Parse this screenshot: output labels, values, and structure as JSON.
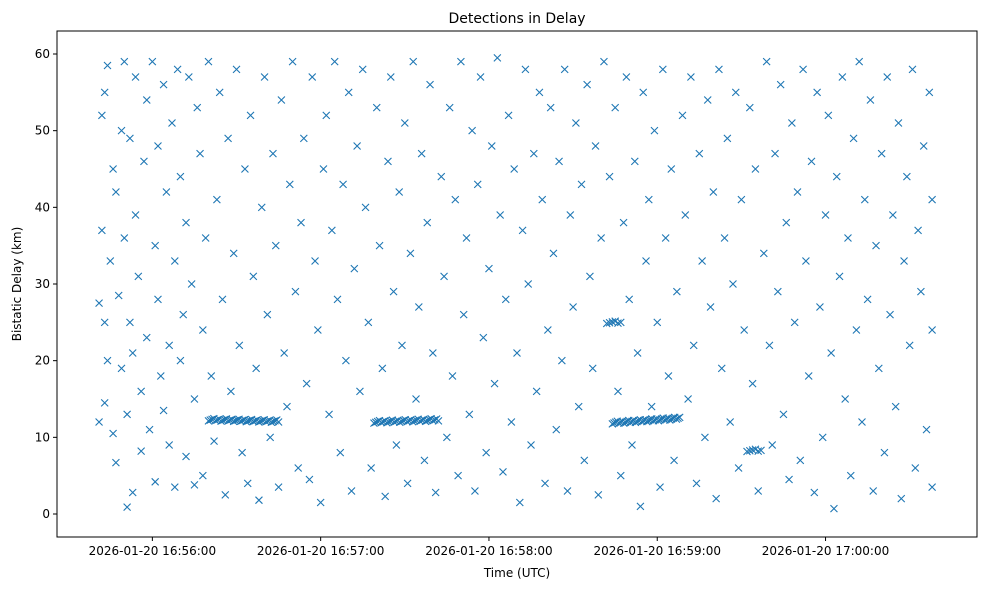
{
  "chart_data": {
    "type": "scatter",
    "title": "Detections in Delay",
    "xlabel": "Time (UTC)",
    "ylabel": "Bistatic Delay (km)",
    "x_units": "seconds after 2026-01-20 16:56:00 UTC",
    "xlim": [
      -34,
      294
    ],
    "ylim": [
      -3,
      63
    ],
    "grid": false,
    "legend": "none",
    "marker": "x",
    "color": "#1f77b4",
    "xticks": [
      {
        "value": 0,
        "label": "2026-01-20 16:56:00"
      },
      {
        "value": 60,
        "label": "2026-01-20 16:57:00"
      },
      {
        "value": 120,
        "label": "2026-01-20 16:58:00"
      },
      {
        "value": 180,
        "label": "2026-01-20 16:59:00"
      },
      {
        "value": 240,
        "label": "2026-01-20 17:00:00"
      }
    ],
    "yticks": [
      {
        "value": 0,
        "label": "0"
      },
      {
        "value": 10,
        "label": "10"
      },
      {
        "value": 20,
        "label": "20"
      },
      {
        "value": 30,
        "label": "30"
      },
      {
        "value": 40,
        "label": "40"
      },
      {
        "value": 50,
        "label": "50"
      },
      {
        "value": 60,
        "label": "60"
      }
    ],
    "tracks": [
      {
        "t_start": 20,
        "t_end": 45,
        "delay_start": 12.3,
        "delay_end": 12.1,
        "count": 40
      },
      {
        "t_start": 79,
        "t_end": 102,
        "delay_start": 12.0,
        "delay_end": 12.3,
        "count": 36
      },
      {
        "t_start": 164,
        "t_end": 188,
        "delay_start": 11.9,
        "delay_end": 12.5,
        "count": 42
      },
      {
        "t_start": 162,
        "t_end": 167,
        "delay_start": 25.0,
        "delay_end": 25.0,
        "count": 6
      },
      {
        "t_start": 212,
        "t_end": 217,
        "delay_start": 8.3,
        "delay_end": 8.3,
        "count": 6
      }
    ],
    "points": [
      [
        -19,
        27.5
      ],
      [
        -19,
        12
      ],
      [
        -18,
        52
      ],
      [
        -18,
        37
      ],
      [
        -17,
        55
      ],
      [
        -17,
        25
      ],
      [
        -17,
        14.5
      ],
      [
        -16,
        58.5
      ],
      [
        -16,
        20
      ],
      [
        -15,
        33
      ],
      [
        -14,
        45
      ],
      [
        -14,
        10.5
      ],
      [
        -13,
        42
      ],
      [
        -13,
        6.7
      ],
      [
        -12,
        28.5
      ],
      [
        -11,
        50
      ],
      [
        -11,
        19
      ],
      [
        -10,
        59
      ],
      [
        -10,
        36
      ],
      [
        -9,
        13
      ],
      [
        -9,
        0.9
      ],
      [
        -8,
        49
      ],
      [
        -8,
        25
      ],
      [
        -7,
        21
      ],
      [
        -7,
        2.8
      ],
      [
        -6,
        57
      ],
      [
        -6,
        39
      ],
      [
        -5,
        31
      ],
      [
        -4,
        16
      ],
      [
        -4,
        8.2
      ],
      [
        -3,
        46
      ],
      [
        -2,
        54
      ],
      [
        -2,
        23
      ],
      [
        -1,
        11
      ],
      [
        0,
        59
      ],
      [
        1,
        35
      ],
      [
        1,
        4.2
      ],
      [
        2,
        48
      ],
      [
        2,
        28
      ],
      [
        3,
        18
      ],
      [
        4,
        56
      ],
      [
        4,
        13.5
      ],
      [
        5,
        42
      ],
      [
        6,
        22
      ],
      [
        6,
        9
      ],
      [
        7,
        51
      ],
      [
        8,
        33
      ],
      [
        8,
        3.5
      ],
      [
        9,
        58
      ],
      [
        10,
        44
      ],
      [
        10,
        20
      ],
      [
        11,
        26
      ],
      [
        12,
        38
      ],
      [
        12,
        7.5
      ],
      [
        13,
        57
      ],
      [
        14,
        30
      ],
      [
        15,
        15
      ],
      [
        15,
        3.8
      ],
      [
        16,
        53
      ],
      [
        17,
        47
      ],
      [
        18,
        24
      ],
      [
        18,
        5
      ],
      [
        19,
        36
      ],
      [
        20,
        59
      ],
      [
        21,
        18
      ],
      [
        22,
        9.5
      ],
      [
        23,
        41
      ],
      [
        24,
        55
      ],
      [
        25,
        28
      ],
      [
        26,
        2.5
      ],
      [
        27,
        49
      ],
      [
        28,
        16
      ],
      [
        29,
        34
      ],
      [
        30,
        58
      ],
      [
        31,
        22
      ],
      [
        32,
        8
      ],
      [
        33,
        45
      ],
      [
        34,
        4
      ],
      [
        35,
        52
      ],
      [
        36,
        31
      ],
      [
        37,
        19
      ],
      [
        38,
        1.8
      ],
      [
        39,
        40
      ],
      [
        40,
        57
      ],
      [
        41,
        26
      ],
      [
        42,
        10
      ],
      [
        43,
        47
      ],
      [
        44,
        35
      ],
      [
        45,
        3.5
      ],
      [
        46,
        54
      ],
      [
        47,
        21
      ],
      [
        48,
        14
      ],
      [
        49,
        43
      ],
      [
        50,
        59
      ],
      [
        51,
        29
      ],
      [
        52,
        6
      ],
      [
        53,
        38
      ],
      [
        54,
        49
      ],
      [
        55,
        17
      ],
      [
        56,
        4.5
      ],
      [
        57,
        57
      ],
      [
        58,
        33
      ],
      [
        59,
        24
      ],
      [
        60,
        1.5
      ],
      [
        61,
        45
      ],
      [
        62,
        52
      ],
      [
        63,
        13
      ],
      [
        64,
        37
      ],
      [
        65,
        59
      ],
      [
        66,
        28
      ],
      [
        67,
        8
      ],
      [
        68,
        43
      ],
      [
        69,
        20
      ],
      [
        70,
        55
      ],
      [
        71,
        3
      ],
      [
        72,
        32
      ],
      [
        73,
        48
      ],
      [
        74,
        16
      ],
      [
        75,
        58
      ],
      [
        76,
        40
      ],
      [
        77,
        25
      ],
      [
        78,
        6
      ],
      [
        80,
        53
      ],
      [
        81,
        35
      ],
      [
        82,
        19
      ],
      [
        83,
        2.3
      ],
      [
        84,
        46
      ],
      [
        85,
        57
      ],
      [
        86,
        29
      ],
      [
        87,
        9
      ],
      [
        88,
        42
      ],
      [
        89,
        22
      ],
      [
        90,
        51
      ],
      [
        91,
        4
      ],
      [
        92,
        34
      ],
      [
        93,
        59
      ],
      [
        94,
        15
      ],
      [
        95,
        27
      ],
      [
        96,
        47
      ],
      [
        97,
        7
      ],
      [
        98,
        38
      ],
      [
        99,
        56
      ],
      [
        100,
        21
      ],
      [
        101,
        2.8
      ],
      [
        103,
        44
      ],
      [
        104,
        31
      ],
      [
        105,
        10
      ],
      [
        106,
        53
      ],
      [
        107,
        18
      ],
      [
        108,
        41
      ],
      [
        109,
        5
      ],
      [
        110,
        59
      ],
      [
        111,
        26
      ],
      [
        112,
        36
      ],
      [
        113,
        13
      ],
      [
        114,
        50
      ],
      [
        115,
        3
      ],
      [
        116,
        43
      ],
      [
        117,
        57
      ],
      [
        118,
        23
      ],
      [
        119,
        8
      ],
      [
        120,
        32
      ],
      [
        121,
        48
      ],
      [
        122,
        17
      ],
      [
        123,
        59.5
      ],
      [
        124,
        39
      ],
      [
        125,
        5.5
      ],
      [
        126,
        28
      ],
      [
        127,
        52
      ],
      [
        128,
        12
      ],
      [
        129,
        45
      ],
      [
        130,
        21
      ],
      [
        131,
        1.5
      ],
      [
        132,
        37
      ],
      [
        133,
        58
      ],
      [
        134,
        30
      ],
      [
        135,
        9
      ],
      [
        136,
        47
      ],
      [
        137,
        16
      ],
      [
        138,
        55
      ],
      [
        139,
        41
      ],
      [
        140,
        4
      ],
      [
        141,
        24
      ],
      [
        142,
        53
      ],
      [
        143,
        34
      ],
      [
        144,
        11
      ],
      [
        145,
        46
      ],
      [
        146,
        20
      ],
      [
        147,
        58
      ],
      [
        148,
        3
      ],
      [
        149,
        39
      ],
      [
        150,
        27
      ],
      [
        151,
        51
      ],
      [
        152,
        14
      ],
      [
        153,
        43
      ],
      [
        154,
        7
      ],
      [
        155,
        56
      ],
      [
        156,
        31
      ],
      [
        157,
        19
      ],
      [
        158,
        48
      ],
      [
        159,
        2.5
      ],
      [
        160,
        36
      ],
      [
        161,
        59
      ],
      [
        163,
        44
      ],
      [
        165,
        53
      ],
      [
        166,
        16
      ],
      [
        167,
        5
      ],
      [
        168,
        38
      ],
      [
        169,
        57
      ],
      [
        170,
        28
      ],
      [
        171,
        9
      ],
      [
        172,
        46
      ],
      [
        173,
        21
      ],
      [
        174,
        1
      ],
      [
        175,
        55
      ],
      [
        176,
        33
      ],
      [
        177,
        41
      ],
      [
        178,
        14
      ],
      [
        179,
        50
      ],
      [
        180,
        25
      ],
      [
        181,
        3.5
      ],
      [
        182,
        58
      ],
      [
        183,
        36
      ],
      [
        184,
        18
      ],
      [
        185,
        45
      ],
      [
        186,
        7
      ],
      [
        187,
        29
      ],
      [
        189,
        52
      ],
      [
        190,
        39
      ],
      [
        191,
        15
      ],
      [
        192,
        57
      ],
      [
        193,
        22
      ],
      [
        194,
        4
      ],
      [
        195,
        47
      ],
      [
        196,
        33
      ],
      [
        197,
        10
      ],
      [
        198,
        54
      ],
      [
        199,
        27
      ],
      [
        200,
        42
      ],
      [
        201,
        2
      ],
      [
        202,
        58
      ],
      [
        203,
        19
      ],
      [
        204,
        36
      ],
      [
        205,
        49
      ],
      [
        206,
        12
      ],
      [
        207,
        30
      ],
      [
        208,
        55
      ],
      [
        209,
        6
      ],
      [
        210,
        41
      ],
      [
        211,
        24
      ],
      [
        213,
        53
      ],
      [
        214,
        17
      ],
      [
        215,
        45
      ],
      [
        216,
        3
      ],
      [
        218,
        34
      ],
      [
        219,
        59
      ],
      [
        220,
        22
      ],
      [
        221,
        9
      ],
      [
        222,
        47
      ],
      [
        223,
        29
      ],
      [
        224,
        56
      ],
      [
        225,
        13
      ],
      [
        226,
        38
      ],
      [
        227,
        4.5
      ],
      [
        228,
        51
      ],
      [
        229,
        25
      ],
      [
        230,
        42
      ],
      [
        231,
        7
      ],
      [
        232,
        58
      ],
      [
        233,
        33
      ],
      [
        234,
        18
      ],
      [
        235,
        46
      ],
      [
        236,
        2.8
      ],
      [
        237,
        55
      ],
      [
        238,
        27
      ],
      [
        239,
        10
      ],
      [
        240,
        39
      ],
      [
        241,
        52
      ],
      [
        242,
        21
      ],
      [
        243,
        0.7
      ],
      [
        244,
        44
      ],
      [
        245,
        31
      ],
      [
        246,
        57
      ],
      [
        247,
        15
      ],
      [
        248,
        36
      ],
      [
        249,
        5
      ],
      [
        250,
        49
      ],
      [
        251,
        24
      ],
      [
        252,
        59
      ],
      [
        253,
        12
      ],
      [
        254,
        41
      ],
      [
        255,
        28
      ],
      [
        256,
        54
      ],
      [
        257,
        3
      ],
      [
        258,
        35
      ],
      [
        259,
        19
      ],
      [
        260,
        47
      ],
      [
        261,
        8
      ],
      [
        262,
        57
      ],
      [
        263,
        26
      ],
      [
        264,
        39
      ],
      [
        265,
        14
      ],
      [
        266,
        51
      ],
      [
        267,
        2
      ],
      [
        268,
        33
      ],
      [
        269,
        44
      ],
      [
        270,
        22
      ],
      [
        271,
        58
      ],
      [
        272,
        6
      ],
      [
        273,
        37
      ],
      [
        274,
        29
      ],
      [
        275,
        48
      ],
      [
        276,
        11
      ],
      [
        277,
        55
      ],
      [
        278,
        3.5
      ],
      [
        278,
        24
      ],
      [
        278,
        41
      ]
    ]
  }
}
